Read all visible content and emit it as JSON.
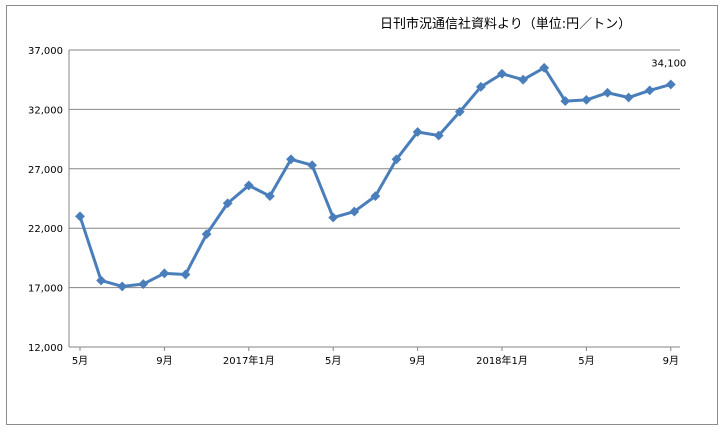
{
  "source_note": "日刊市況通信社資料より（単位:円／トン）",
  "chart_data": {
    "type": "line",
    "title": "",
    "xlabel": "",
    "ylabel": "",
    "ylim": [
      12000,
      37000
    ],
    "y_ticks": [
      "12,000",
      "17,000",
      "22,000",
      "27,000",
      "32,000",
      "37,000"
    ],
    "y_tick_values": [
      12000,
      17000,
      22000,
      27000,
      32000,
      37000
    ],
    "grid": true,
    "legend": "none",
    "series_color": "#4a7ebb",
    "x_labels": [
      {
        "index": 0,
        "text": "5月"
      },
      {
        "index": 4,
        "text": "9月"
      },
      {
        "index": 8,
        "text": "2017年1月"
      },
      {
        "index": 12,
        "text": "5月"
      },
      {
        "index": 16,
        "text": "9月"
      },
      {
        "index": 20,
        "text": "2018年1月"
      },
      {
        "index": 24,
        "text": "5月"
      },
      {
        "index": 28,
        "text": "9月"
      }
    ],
    "values": [
      23000,
      17600,
      17100,
      17300,
      18200,
      18100,
      21500,
      24100,
      25600,
      24700,
      27800,
      27300,
      22900,
      23400,
      24700,
      27800,
      30100,
      29800,
      31800,
      33900,
      35000,
      34500,
      35500,
      32700,
      32800,
      33400,
      33000,
      33600,
      34100
    ],
    "data_labels": [
      {
        "index": 28,
        "text": "34,100"
      }
    ]
  }
}
